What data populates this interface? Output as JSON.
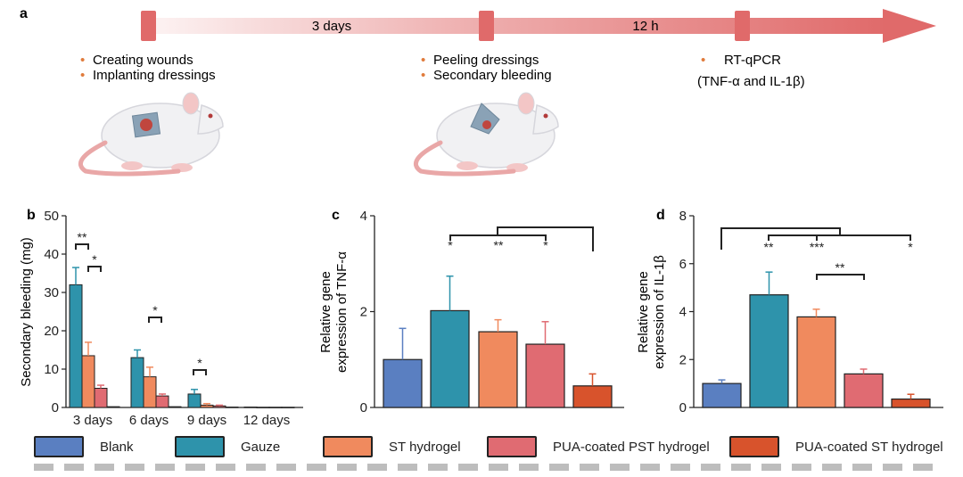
{
  "colors": {
    "blank": "#5a7fc1",
    "gauze": "#2e93ab",
    "st_hydrogel": "#f08a5e",
    "pua_pst": "#e06b72",
    "pua_st": "#d8532c",
    "timeline": "#e06a6a",
    "bullet": "#e07b3c"
  },
  "panel_a": {
    "label": "a",
    "interval_1": "3 days",
    "interval_2": "12 h",
    "step1_items": [
      "Creating wounds",
      "Implanting dressings"
    ],
    "step2_items": [
      "Peeling dressings",
      "Secondary bleeding"
    ],
    "step3_title": "RT-qPCR",
    "step3_sub": "(TNF-α and IL-1β)",
    "rat_1": "rat-with-dressing-illustration",
    "rat_2": "rat-peeling-dressing-illustration"
  },
  "legend": [
    {
      "label": "Blank",
      "color": "#5a7fc1"
    },
    {
      "label": "Gauze",
      "color": "#2e93ab"
    },
    {
      "label": "ST hydrogel",
      "color": "#f08a5e"
    },
    {
      "label": "PUA-coated PST hydrogel",
      "color": "#e06b72"
    },
    {
      "label": "PUA-coated ST hydrogel",
      "color": "#d8532c"
    }
  ],
  "chart_data": [
    {
      "panel": "b",
      "type": "bar",
      "ylabel": "Secondary bleeding (mg)",
      "ylim": [
        0,
        50
      ],
      "yticks": [
        0,
        10,
        20,
        30,
        40,
        50
      ],
      "categories": [
        "3 days",
        "6 days",
        "9 days",
        "12 days"
      ],
      "series": [
        {
          "name": "Gauze",
          "values": [
            32,
            13,
            3.5,
            0.1
          ],
          "errors": [
            4.5,
            2,
            1.2,
            0
          ]
        },
        {
          "name": "ST hydrogel",
          "values": [
            13.5,
            8,
            0.6,
            0.05
          ],
          "errors": [
            3.5,
            2.5,
            0.4,
            0
          ]
        },
        {
          "name": "PUA-coated PST hydrogel",
          "values": [
            5,
            3,
            0.4,
            0.05
          ],
          "errors": [
            0.8,
            0.5,
            0.2,
            0
          ]
        },
        {
          "name": "PUA-coated ST hydrogel",
          "values": [
            0.2,
            0.2,
            0.1,
            0.05
          ],
          "errors": [
            0,
            0,
            0,
            0
          ]
        }
      ],
      "significance": [
        {
          "text": "**",
          "category": "3 days"
        },
        {
          "text": "*",
          "category": "3 days"
        },
        {
          "text": "*",
          "category": "6 days"
        },
        {
          "text": "*",
          "category": "9 days"
        }
      ]
    },
    {
      "panel": "c",
      "type": "bar",
      "ylabel_line1": "Relative gene",
      "ylabel_line2": "expression of TNF-α",
      "ylim": [
        0,
        4
      ],
      "yticks": [
        0,
        2,
        4
      ],
      "categories": [
        "Blank",
        "Gauze",
        "ST hydrogel",
        "PUA-coated PST hydrogel",
        "PUA-coated ST hydrogel"
      ],
      "values": [
        1.0,
        2.02,
        1.58,
        1.32,
        0.45
      ],
      "errors": [
        0.65,
        0.72,
        0.25,
        0.47,
        0.25
      ],
      "significance": [
        "*",
        "**",
        "*"
      ]
    },
    {
      "panel": "d",
      "type": "bar",
      "ylabel_line1": "Relative gene",
      "ylabel_line2": "expression of IL-1β",
      "ylim": [
        0,
        8
      ],
      "yticks": [
        0,
        2,
        4,
        6,
        8
      ],
      "categories": [
        "Blank",
        "Gauze",
        "ST hydrogel",
        "PUA-coated PST hydrogel",
        "PUA-coated ST hydrogel"
      ],
      "values": [
        1.0,
        4.7,
        3.78,
        1.4,
        0.35
      ],
      "errors": [
        0.15,
        0.95,
        0.32,
        0.2,
        0.2
      ],
      "significance": [
        "**",
        "***",
        "*",
        "**"
      ]
    }
  ]
}
